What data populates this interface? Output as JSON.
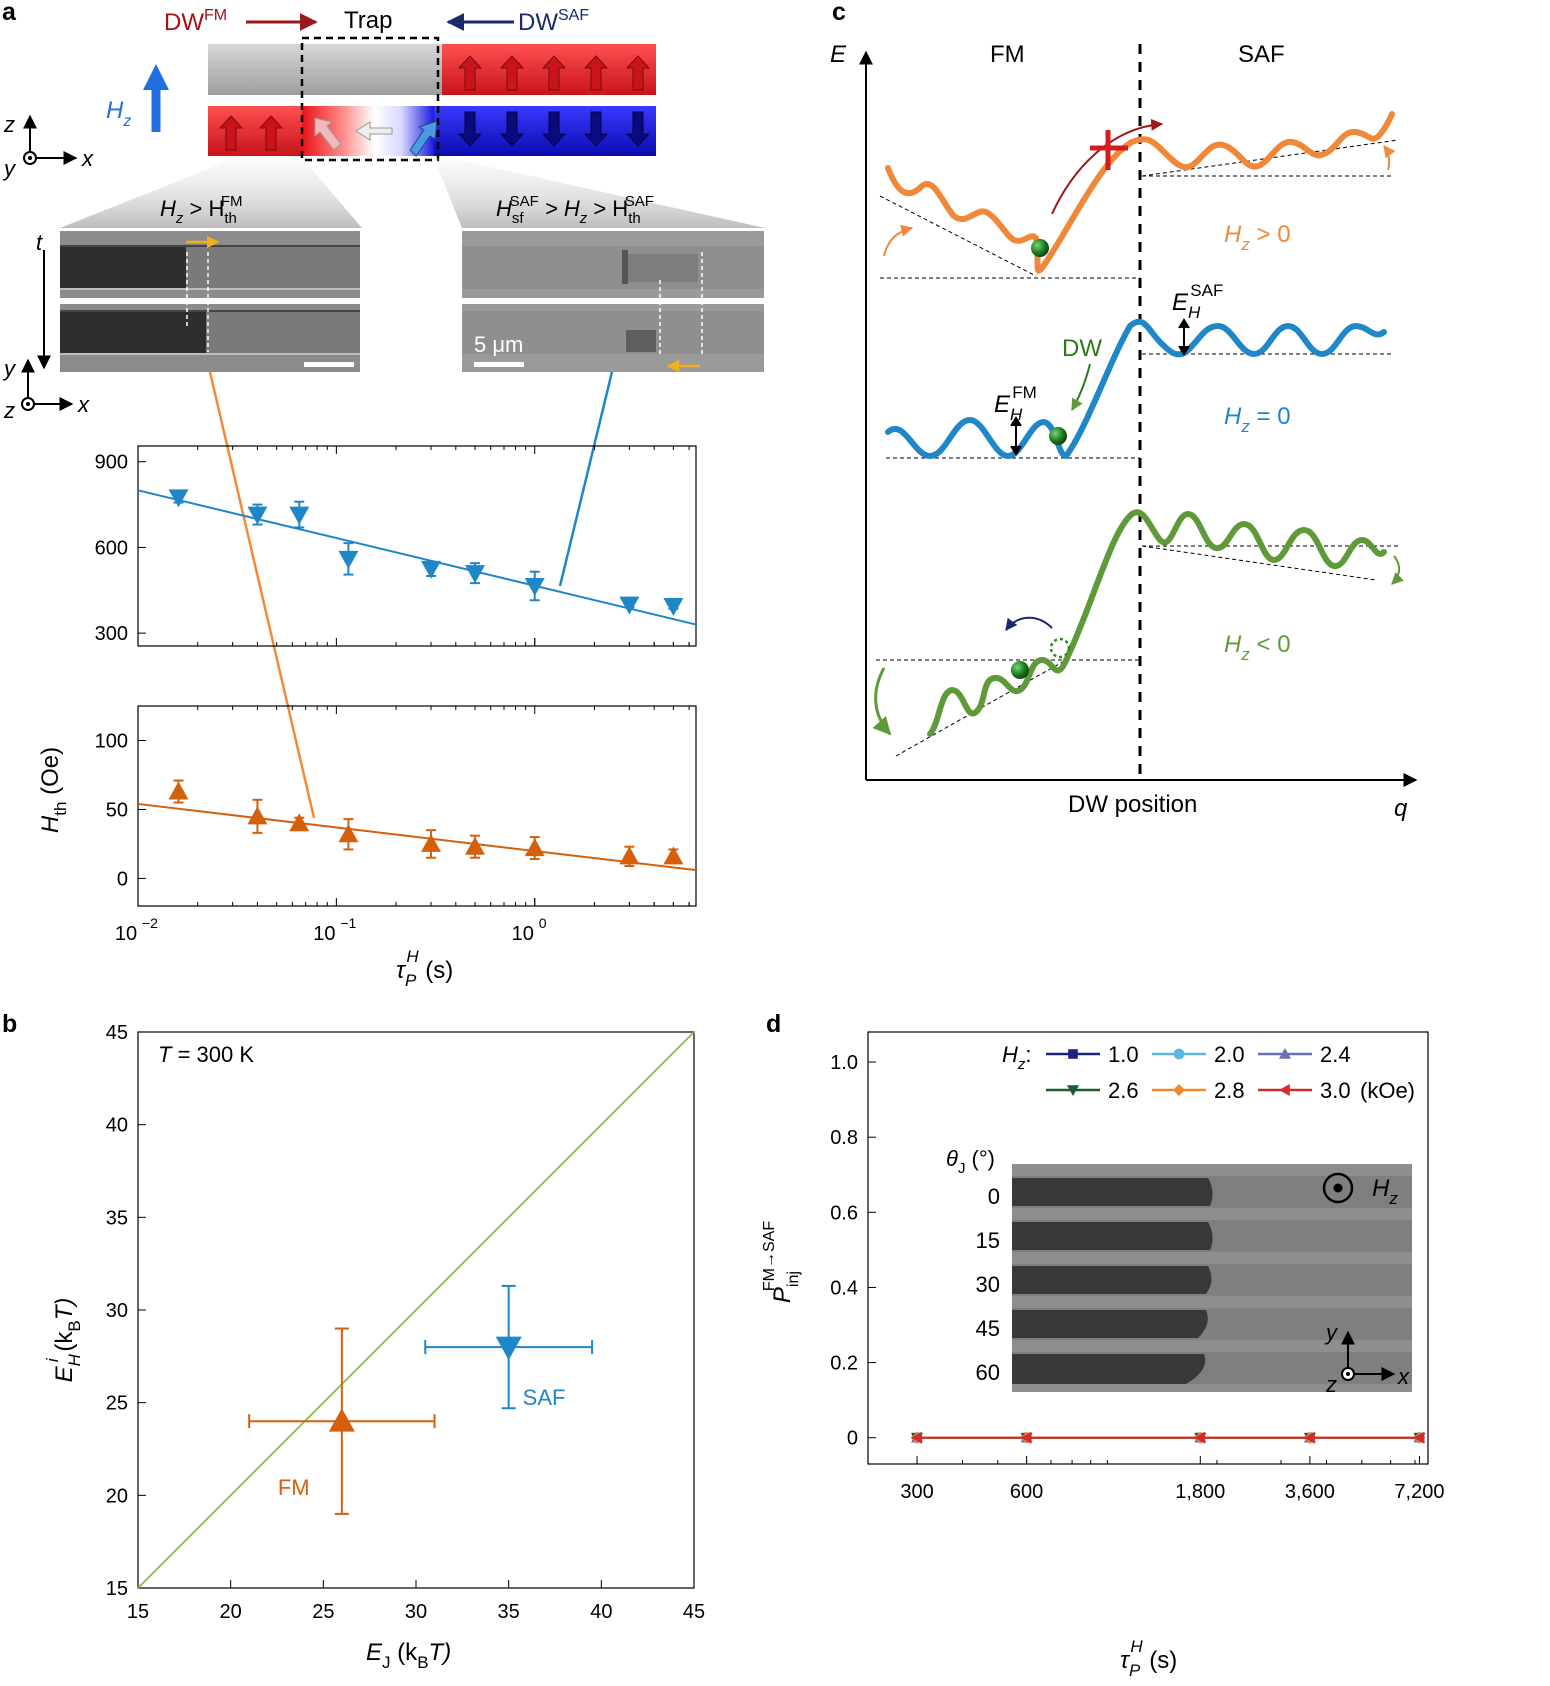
{
  "colors": {
    "fm": "#e07a1f",
    "fm_dark": "#d4600e",
    "saf": "#1f86c8",
    "green": "#5e9a3a",
    "red": "#e32426",
    "blue": "#1c3ad6",
    "navy": "#1a2a6a",
    "darkred": "#9a1a1a"
  },
  "panel_a": {
    "letter": "a",
    "dw_fm": "DW",
    "dw_fm_sup": "FM",
    "trap": "Trap",
    "dw_saf": "DW",
    "dw_saf_sup": "SAF",
    "hz_label": "H",
    "hz_sub": "z",
    "axis_z": "z",
    "axis_x": "x",
    "axis_y": "y",
    "axis_t": "t",
    "axis_y2": "y",
    "axis_z2": "z",
    "axis_x2": "x",
    "img1_label": "H_z > H_th^FM",
    "img1_label_parts": [
      "H",
      "z",
      " > H",
      "th",
      "FM"
    ],
    "img2_label_parts": [
      "H",
      "sf",
      "SAF",
      " > H",
      "z",
      " > H",
      "th",
      "SAF"
    ],
    "scalebar": "5 μm"
  },
  "chart_data": [
    {
      "id": "a-top",
      "type": "scatter",
      "xscale": "log",
      "xlim": [
        0.01,
        6.5
      ],
      "ylim": [
        255,
        955
      ],
      "yticks": [
        300,
        600,
        900
      ],
      "ytick_labels": [
        "300",
        "600",
        "900"
      ],
      "series": [
        {
          "name": "SAF",
          "marker": "down-triangle",
          "color": "#1f86c8",
          "x": [
            0.016,
            0.04,
            0.065,
            0.115,
            0.3,
            0.5,
            1.0,
            3.0,
            5.0
          ],
          "y": [
            775,
            715,
            715,
            560,
            525,
            510,
            465,
            400,
            395
          ],
          "err": [
            18,
            35,
            45,
            55,
            25,
            35,
            50,
            10,
            10
          ]
        }
      ],
      "fit": {
        "x": [
          0.01,
          6.5
        ],
        "y": [
          800,
          330
        ]
      }
    },
    {
      "id": "a-bottom",
      "type": "scatter",
      "xscale": "log",
      "xlim": [
        0.01,
        6.5
      ],
      "ylim": [
        -20,
        125
      ],
      "yticks": [
        0,
        50,
        100
      ],
      "ytick_labels": [
        "0",
        "50",
        "100"
      ],
      "xticks": [
        0.01,
        0.1,
        1
      ],
      "xtick_labels": [
        "10",
        "10",
        "10"
      ],
      "xtick_exponents": [
        "−2",
        "−1",
        "0"
      ],
      "ylabel": "H_th (Oe)",
      "ylabel_parts": [
        "H",
        "th",
        " (Oe)"
      ],
      "xlabel_parts": [
        "τ",
        "P",
        "H",
        " (s)"
      ],
      "series": [
        {
          "name": "FM",
          "marker": "up-triangle",
          "color": "#d4600e",
          "x": [
            0.016,
            0.04,
            0.065,
            0.115,
            0.3,
            0.5,
            1.0,
            3.0,
            5.0
          ],
          "y": [
            63,
            45,
            40,
            32,
            25,
            23,
            22,
            16,
            16
          ],
          "err": [
            8,
            12,
            4,
            11,
            10,
            8,
            8,
            7,
            5
          ]
        }
      ],
      "fit": {
        "x": [
          0.01,
          6.5
        ],
        "y": [
          54,
          6
        ]
      }
    },
    {
      "id": "b",
      "type": "scatter",
      "letter": "b",
      "xlim": [
        15,
        45
      ],
      "ylim": [
        15,
        45
      ],
      "xticks": [
        15,
        20,
        25,
        30,
        35,
        40,
        45
      ],
      "yticks": [
        15,
        20,
        25,
        30,
        35,
        40,
        45
      ],
      "xtick_labels": [
        "15",
        "20",
        "25",
        "30",
        "35",
        "40",
        "45"
      ],
      "ytick_labels": [
        "15",
        "20",
        "25",
        "30",
        "35",
        "40",
        "45"
      ],
      "annotation_parts": [
        "T",
        " = 300 K"
      ],
      "xlabel_parts": [
        "E",
        "J",
        " (k",
        "B",
        "T)"
      ],
      "ylabel_parts": [
        "E",
        "H",
        "i",
        " (k",
        "B",
        "T)"
      ],
      "diagonal": {
        "x": [
          15,
          45
        ],
        "y": [
          15,
          45
        ],
        "color": "#8dbb4a"
      },
      "series": [
        {
          "name": "FM",
          "marker": "up-triangle",
          "color": "#d4600e",
          "x": 26,
          "y": 24,
          "xerr": [
            21,
            31
          ],
          "yerr": [
            19,
            29
          ]
        },
        {
          "name": "SAF",
          "marker": "down-triangle",
          "color": "#1f86c8",
          "x": 35,
          "y": 28,
          "xerr": [
            30.5,
            39.5
          ],
          "yerr": [
            24.7,
            31.3
          ]
        }
      ]
    },
    {
      "id": "d",
      "type": "line",
      "letter": "d",
      "xlim": [
        220,
        7600
      ],
      "ylim": [
        -0.07,
        1.08
      ],
      "x_positions_note": "categorical-log",
      "xticks": [
        300,
        600,
        1800,
        3600,
        7200
      ],
      "xtick_labels": [
        "300",
        "600",
        "1,800",
        "3,600",
        "7,200"
      ],
      "yticks": [
        0,
        0.2,
        0.4,
        0.6,
        0.8,
        1.0
      ],
      "ytick_labels": [
        "0",
        "0.2",
        "0.4",
        "0.6",
        "0.8",
        "1.0"
      ],
      "xlabel_parts": [
        "τ",
        "P",
        "H",
        " (s)"
      ],
      "ylabel_parts": [
        "P",
        "inj",
        "FM→SAF"
      ],
      "legend_title": "H_z:",
      "legend_title_parts": [
        "H",
        "z",
        ":"
      ],
      "legend_unit": "(kOe)",
      "series": [
        {
          "name": "1.0",
          "color": "#1a237e",
          "marker": "square",
          "x": [
            300,
            600,
            1800,
            3600,
            7200
          ],
          "y": [
            0,
            0,
            0,
            0,
            0
          ]
        },
        {
          "name": "2.0",
          "color": "#5bb7e5",
          "marker": "circle",
          "x": [
            300,
            600,
            1800,
            3600,
            7200
          ],
          "y": [
            0,
            0,
            0,
            0,
            0
          ]
        },
        {
          "name": "2.4",
          "color": "#6b6fb8",
          "marker": "up-triangle",
          "x": [
            300,
            600,
            1800,
            3600,
            7200
          ],
          "y": [
            0,
            0,
            0,
            0,
            0
          ]
        },
        {
          "name": "2.6",
          "color": "#1e5b2e",
          "marker": "down-triangle",
          "x": [
            300,
            600,
            1800,
            3600,
            7200
          ],
          "y": [
            0,
            0,
            0,
            0,
            0
          ]
        },
        {
          "name": "2.8",
          "color": "#ef8a2c",
          "marker": "diamond",
          "x": [
            300,
            600,
            1800,
            3600,
            7200
          ],
          "y": [
            0,
            0,
            0,
            0,
            0
          ]
        },
        {
          "name": "3.0",
          "color": "#d42a2a",
          "marker": "left-triangle",
          "x": [
            300,
            600,
            1800,
            3600,
            7200
          ],
          "y": [
            0,
            0,
            0,
            0,
            0
          ]
        }
      ],
      "inset": {
        "theta_label_parts": [
          "θ",
          "J",
          " (°)"
        ],
        "angles": [
          "0",
          "15",
          "30",
          "45",
          "60"
        ],
        "hz_parts": [
          "H",
          "z"
        ],
        "axis_y": "y",
        "axis_x": "x",
        "axis_z": "z"
      }
    }
  ],
  "panel_c": {
    "letter": "c",
    "axis_e": "E",
    "axis_q": "q",
    "fm": "FM",
    "saf": "SAF",
    "xlabel": "DW position",
    "hz_pos_parts": [
      "H",
      "z",
      " > 0"
    ],
    "hz_zero_parts": [
      "H",
      "z",
      " = 0"
    ],
    "hz_neg_parts": [
      "H",
      "z",
      " < 0"
    ],
    "dw": "DW",
    "eh_fm_parts": [
      "E",
      "H",
      "FM"
    ],
    "eh_saf_parts": [
      "E",
      "H",
      "SAF"
    ]
  }
}
